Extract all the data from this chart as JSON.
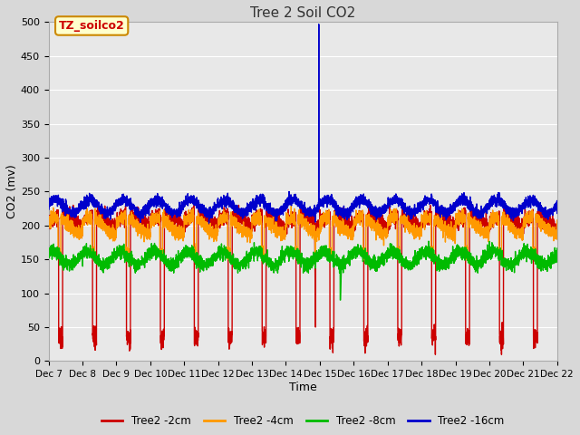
{
  "title": "Tree 2 Soil CO2",
  "xlabel": "Time",
  "ylabel": "CO2 (mv)",
  "ylim": [
    0,
    500
  ],
  "xlim_days": [
    7,
    22
  ],
  "xtick_labels": [
    "Dec 7",
    "Dec 8",
    "Dec 9",
    "Dec 10",
    "Dec 11",
    "Dec 12",
    "Dec 13",
    "Dec 14",
    "Dec 15",
    "Dec 16",
    "Dec 17",
    "Dec 18",
    "Dec 19",
    "Dec 20",
    "Dec 21",
    "Dec 22"
  ],
  "colors": {
    "2cm": "#cc0000",
    "4cm": "#ff9900",
    "8cm": "#00bb00",
    "16cm": "#0000cc"
  },
  "legend_labels": [
    "Tree2 -2cm",
    "Tree2 -4cm",
    "Tree2 -8cm",
    "Tree2 -16cm"
  ],
  "annotation_label": "TZ_soilco2",
  "annotation_color": "#cc0000",
  "annotation_bg": "#ffffcc",
  "annotation_border": "#cc8800",
  "fig_bg": "#d8d8d8",
  "plot_bg": "#e8e8e8",
  "grid_color": "#ffffff",
  "line_width": 1.0,
  "figsize": [
    6.4,
    4.8
  ],
  "dpi": 100
}
